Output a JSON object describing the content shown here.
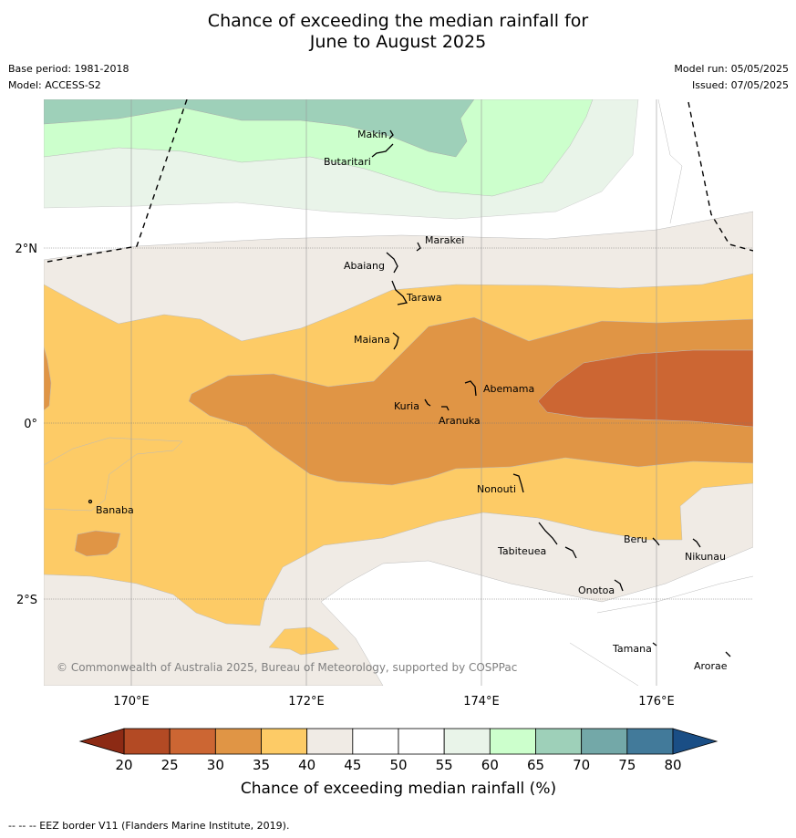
{
  "title_line1": "Chance of exceeding the median rainfall for",
  "title_line2": "June to August 2025",
  "meta": {
    "base_period": "Base period: 1981-2018",
    "model": "Model: ACCESS-S2",
    "model_run": "Model run: 05/05/2025",
    "issued": "Issued: 07/05/2025"
  },
  "axes": {
    "x_ticks": [
      "170°E",
      "172°E",
      "174°E",
      "176°E"
    ],
    "y_ticks": [
      "2°N",
      "0°",
      "2°S"
    ]
  },
  "places": [
    "Makin",
    "Butaritari",
    "Marakei",
    "Abaiang",
    "Tarawa",
    "Maiana",
    "Abemama",
    "Kuria",
    "Aranuka",
    "Nonouti",
    "Banaba",
    "Beru",
    "Tabiteuea",
    "Nikunau",
    "Onotoa",
    "Tamana",
    "Arorae"
  ],
  "copyright": "© Commonwealth of Australia 2025, Bureau of Meteorology, supported by COSPPac",
  "colorbar": {
    "title": "Chance of exceeding median rainfall (%)",
    "ticks": [
      "20",
      "25",
      "30",
      "35",
      "40",
      "45",
      "50",
      "55",
      "60",
      "65",
      "70",
      "75",
      "80"
    ],
    "colors": [
      "#b34a24",
      "#cc6633",
      "#e09545",
      "#fdcb66",
      "#f0ebe5",
      "#ffffff",
      "#ffffff",
      "#e9f4e9",
      "#ccffcc",
      "#9ed0b9",
      "#73a8a8",
      "#427a9a"
    ],
    "under_color": "#8c2a14",
    "over_color": "#1a4e85"
  },
  "footer": "-- -- -- EEZ border V11 (Flanders Marine Institute, 2019)."
}
